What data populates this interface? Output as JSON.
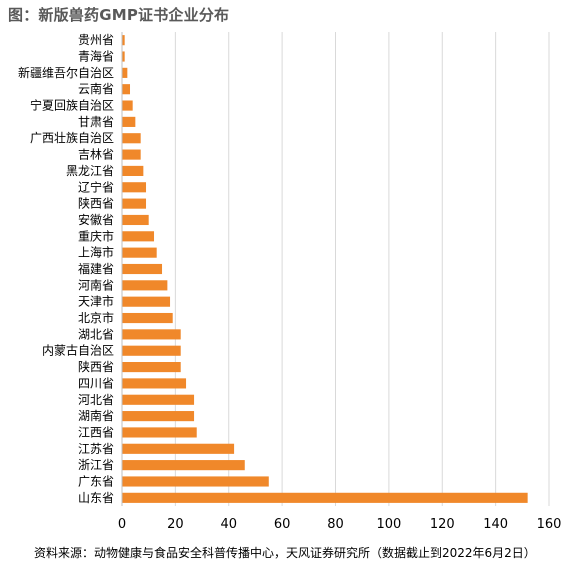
{
  "header": {
    "title": "图：新版兽药GMP证书企业分布"
  },
  "footer": {
    "source": "资料来源：动物健康与食品安全科普传播中心，天风证券研究所（数据截止到2022年6月2日）"
  },
  "colors": {
    "bar": "#F0882A",
    "grid": "#D9D9D9",
    "axis": "#BFBFBF"
  },
  "chart_data": {
    "type": "bar",
    "orientation": "horizontal",
    "title": "图：新版兽药GMP证书企业分布",
    "xlim": [
      0,
      160
    ],
    "xticks": [
      0,
      20,
      40,
      60,
      80,
      100,
      120,
      140,
      160
    ],
    "grid": true,
    "categories": [
      "贵州省",
      "青海省",
      "新疆维吾尔自治区",
      "云南省",
      "宁夏回族自治区",
      "甘肃省",
      "广西壮族自治区",
      "吉林省",
      "黑龙江省",
      "辽宁省",
      "陕西省",
      "安徽省",
      "重庆市",
      "上海市",
      "福建省",
      "河南省",
      "天津市",
      "北京市",
      "湖北省",
      "内蒙古自治区",
      "陕西省",
      "四川省",
      "河北省",
      "湖南省",
      "江西省",
      "江苏省",
      "浙江省",
      "广东省",
      "山东省"
    ],
    "values": [
      1,
      1,
      2,
      3,
      4,
      5,
      7,
      7,
      8,
      9,
      9,
      10,
      12,
      13,
      15,
      17,
      18,
      19,
      22,
      22,
      22,
      24,
      27,
      27,
      28,
      42,
      46,
      55,
      152
    ]
  }
}
